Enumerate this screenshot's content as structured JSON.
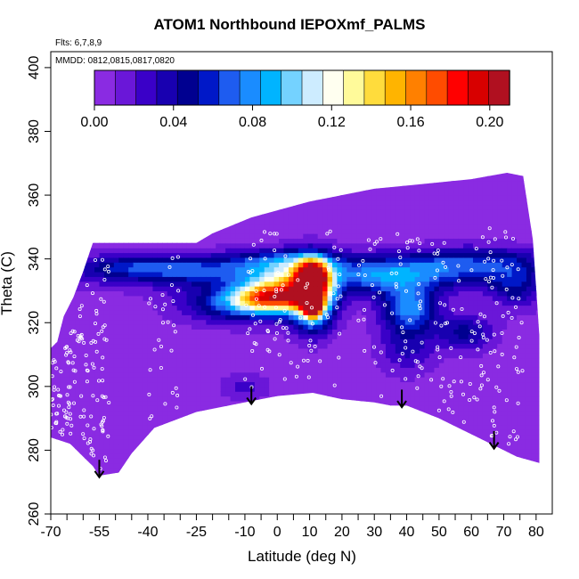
{
  "chart_data": {
    "type": "heatmap",
    "title": "ATOM1 Northbound IEPOXmf_PALMS",
    "flights_note": "Flts: 6,7,8,9",
    "dates_note": "MMDD: 0812,0815,0817,0820",
    "xlabel": "Latitude (deg N)",
    "ylabel": "Theta (C)",
    "xlim": [
      -70,
      85
    ],
    "ylim": [
      260,
      405
    ],
    "x_tick_labels": [
      "-70",
      "-55",
      "-40",
      "-25",
      "-10",
      "0",
      "10",
      "20",
      "30",
      "40",
      "50",
      "60",
      "70",
      "80"
    ],
    "x_tick_values": [
      -70,
      -55,
      -40,
      -25,
      -10,
      0,
      10,
      20,
      30,
      40,
      50,
      60,
      70,
      80
    ],
    "x_minor_ticks": [
      -65,
      -60,
      -50,
      -45,
      -35,
      -30,
      -20,
      -15,
      -5,
      5,
      15,
      25,
      35,
      45,
      55,
      65,
      75
    ],
    "y_tick_labels": [
      "260",
      "280",
      "300",
      "320",
      "340",
      "360",
      "380",
      "400"
    ],
    "y_tick_values": [
      260,
      280,
      300,
      320,
      340,
      360,
      380,
      400
    ],
    "colorbar": {
      "min": 0.0,
      "max": 0.21,
      "tick_labels": [
        "0.00",
        "0.04",
        "0.08",
        "0.12",
        "0.16",
        "0.20"
      ],
      "tick_values": [
        0.0,
        0.04,
        0.08,
        0.12,
        0.16,
        0.2
      ],
      "colors": [
        "#8a2be2",
        "#6a17d8",
        "#3a00c8",
        "#1800b0",
        "#000090",
        "#0018c8",
        "#1e5cf0",
        "#1a8cff",
        "#00b4ff",
        "#74d2ff",
        "#cdecff",
        "#fffff0",
        "#fffa9a",
        "#ffdc3c",
        "#ffb400",
        "#ff8000",
        "#ff4c00",
        "#ff0000",
        "#d80000",
        "#b01020"
      ]
    },
    "background_value": 0.005,
    "bottom_boundary": [
      [
        -70,
        284
      ],
      [
        -67,
        283
      ],
      [
        -64,
        282
      ],
      [
        -60,
        278
      ],
      [
        -57,
        275
      ],
      [
        -55,
        272
      ],
      [
        -49,
        273
      ],
      [
        -45,
        279
      ],
      [
        -38,
        287
      ],
      [
        -25,
        292
      ],
      [
        -15,
        294
      ],
      [
        -5,
        296
      ],
      [
        0,
        297
      ],
      [
        11,
        298
      ],
      [
        20,
        296
      ],
      [
        30,
        295
      ],
      [
        35,
        294
      ],
      [
        40,
        294
      ],
      [
        50,
        290
      ],
      [
        60,
        285
      ],
      [
        70,
        280
      ],
      [
        74,
        278
      ],
      [
        81,
        276
      ]
    ],
    "top_boundary": [
      [
        -70,
        312
      ],
      [
        -68,
        314
      ],
      [
        -66,
        322
      ],
      [
        -63,
        328
      ],
      [
        -60,
        336
      ],
      [
        -57,
        345
      ],
      [
        -25,
        345
      ],
      [
        -20,
        348
      ],
      [
        -8,
        353
      ],
      [
        10,
        358
      ],
      [
        30,
        362
      ],
      [
        40,
        363
      ],
      [
        50,
        364
      ],
      [
        60,
        365
      ],
      [
        71,
        367
      ],
      [
        76,
        366
      ],
      [
        79,
        346
      ],
      [
        81,
        316
      ],
      [
        81,
        276
      ]
    ],
    "features": [
      {
        "lat": -18,
        "theta": 336,
        "dlat": 32,
        "dtheta": 3.5,
        "value": 0.05
      },
      {
        "lat": -40,
        "theta": 338,
        "dlat": 14,
        "dtheta": 2.5,
        "value": 0.03
      },
      {
        "lat": -12,
        "theta": 326,
        "dlat": 12,
        "dtheta": 4,
        "value": 0.06
      },
      {
        "lat": 3,
        "theta": 331,
        "dlat": 8,
        "dtheta": 5,
        "value": 0.08
      },
      {
        "lat": 3,
        "theta": 340,
        "dlat": 12,
        "dtheta": 2.5,
        "value": 0.04
      },
      {
        "lat": -3,
        "theta": 328,
        "dlat": 8,
        "dtheta": 3,
        "value": 0.1
      },
      {
        "lat": 11,
        "theta": 329,
        "dlat": 4.5,
        "dtheta": 7,
        "value": 0.15
      },
      {
        "lat": 11,
        "theta": 335,
        "dlat": 3,
        "dtheta": 3,
        "value": 0.11
      },
      {
        "lat": 11,
        "theta": 326,
        "dlat": 1.7,
        "dtheta": 2.5,
        "value": 0.19
      },
      {
        "lat": 30,
        "theta": 334,
        "dlat": 10,
        "dtheta": 4,
        "value": 0.04
      },
      {
        "lat": 50,
        "theta": 336,
        "dlat": 16,
        "dtheta": 4,
        "value": 0.05
      },
      {
        "lat": 41,
        "theta": 325,
        "dlat": 6,
        "dtheta": 5,
        "value": 0.07
      },
      {
        "lat": 63,
        "theta": 340,
        "dlat": 16,
        "dtheta": 3,
        "value": 0.03
      },
      {
        "lat": 40,
        "theta": 313,
        "dlat": 6,
        "dtheta": 6,
        "value": 0.03
      },
      {
        "lat": 58,
        "theta": 317,
        "dlat": 6,
        "dtheta": 4,
        "value": 0.04
      },
      {
        "lat": -10,
        "theta": 300,
        "dlat": 5,
        "dtheta": 3,
        "value": 0.02
      },
      {
        "lat": 74,
        "theta": 332,
        "dlat": 6,
        "dtheta": 5,
        "value": 0.04
      }
    ],
    "arrows": [
      {
        "lat": -55,
        "theta": 277
      },
      {
        "lat": -8,
        "theta": 300
      },
      {
        "lat": 38.5,
        "theta": 299
      },
      {
        "lat": 67,
        "theta": 286
      }
    ]
  }
}
